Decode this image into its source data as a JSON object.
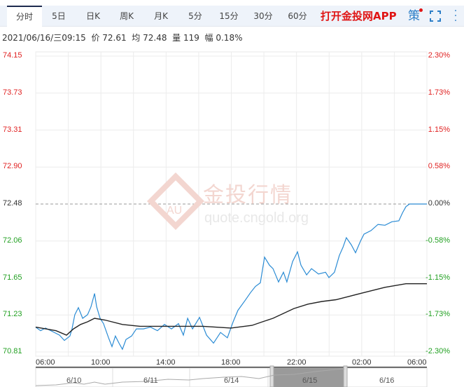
{
  "tabs": [
    {
      "label": "分时",
      "active": true
    },
    {
      "label": "5日"
    },
    {
      "label": "日K"
    },
    {
      "label": "周K"
    },
    {
      "label": "月K"
    },
    {
      "label": "5分"
    },
    {
      "label": "15分"
    },
    {
      "label": "30分"
    },
    {
      "label": "60分"
    }
  ],
  "app_link": "打开金投网APP",
  "strategy_label": "策",
  "info": {
    "datetime": "2021/06/16/三09:15",
    "price_label": "价",
    "price": "72.61",
    "avg_label": "均",
    "avg": "72.48",
    "vol_label": "量",
    "vol": "119",
    "amp_label": "幅",
    "amp": "0.18%"
  },
  "watermark": {
    "brand": "金投行情",
    "logo": "AU",
    "site": "quote.cngold.org"
  },
  "colors": {
    "up": "#e02222",
    "down": "#22a022",
    "price_line": "#2a8bd4",
    "avg_line": "#222222"
  },
  "chart_data": {
    "type": "line",
    "prev_close": 72.48,
    "ylim": [
      70.81,
      74.15
    ],
    "y_ticks_left": [
      "74.15",
      "73.73",
      "73.31",
      "72.90",
      "72.48",
      "72.06",
      "71.65",
      "71.23",
      "70.81"
    ],
    "y_ticks_right": [
      "2.30%",
      "1.73%",
      "1.15%",
      "0.58%",
      "0.00%",
      "-0.58%",
      "-1.15%",
      "-1.73%",
      "-2.30%"
    ],
    "x_ticks": [
      "06:00",
      "10:00",
      "14:00",
      "18:00",
      "22:00",
      "02:00",
      "06:00"
    ],
    "x_range_hours": [
      0,
      24
    ],
    "series": [
      {
        "name": "price",
        "points": [
          [
            0,
            71.09
          ],
          [
            0.3,
            71.05
          ],
          [
            0.6,
            71.08
          ],
          [
            1.03,
            71.04
          ],
          [
            1.46,
            71.0
          ],
          [
            1.76,
            70.94
          ],
          [
            2.1,
            70.99
          ],
          [
            2.23,
            71.07
          ],
          [
            2.4,
            71.23
          ],
          [
            2.62,
            71.31
          ],
          [
            2.88,
            71.19
          ],
          [
            3.18,
            71.23
          ],
          [
            3.39,
            71.32
          ],
          [
            3.61,
            71.47
          ],
          [
            3.74,
            71.32
          ],
          [
            3.95,
            71.19
          ],
          [
            4.16,
            71.13
          ],
          [
            4.47,
            70.97
          ],
          [
            4.68,
            70.87
          ],
          [
            4.89,
            70.99
          ],
          [
            5.11,
            70.91
          ],
          [
            5.32,
            70.84
          ],
          [
            5.54,
            70.95
          ],
          [
            5.88,
            70.99
          ],
          [
            6.18,
            71.07
          ],
          [
            6.61,
            71.07
          ],
          [
            7.04,
            71.09
          ],
          [
            7.47,
            71.05
          ],
          [
            7.9,
            71.12
          ],
          [
            8.33,
            71.07
          ],
          [
            8.76,
            71.13
          ],
          [
            9.06,
            71.0
          ],
          [
            9.32,
            71.19
          ],
          [
            9.62,
            71.07
          ],
          [
            10.05,
            71.2
          ],
          [
            10.48,
            71.0
          ],
          [
            10.91,
            70.91
          ],
          [
            11.34,
            71.03
          ],
          [
            11.76,
            70.97
          ],
          [
            12.11,
            71.15
          ],
          [
            12.41,
            71.28
          ],
          [
            12.84,
            71.39
          ],
          [
            13.18,
            71.48
          ],
          [
            13.48,
            71.55
          ],
          [
            13.78,
            71.59
          ],
          [
            14.04,
            71.88
          ],
          [
            14.34,
            71.79
          ],
          [
            14.56,
            71.75
          ],
          [
            14.9,
            71.6
          ],
          [
            15.2,
            71.71
          ],
          [
            15.41,
            71.6
          ],
          [
            15.76,
            71.83
          ],
          [
            16.06,
            71.94
          ],
          [
            16.27,
            71.79
          ],
          [
            16.62,
            71.68
          ],
          [
            16.92,
            71.75
          ],
          [
            17.35,
            71.69
          ],
          [
            17.78,
            71.71
          ],
          [
            17.99,
            71.65
          ],
          [
            18.33,
            71.71
          ],
          [
            18.63,
            71.9
          ],
          [
            18.85,
            71.99
          ],
          [
            19.06,
            72.1
          ],
          [
            19.36,
            72.02
          ],
          [
            19.62,
            71.93
          ],
          [
            19.92,
            72.06
          ],
          [
            20.14,
            72.14
          ],
          [
            20.57,
            72.18
          ],
          [
            21.0,
            72.25
          ],
          [
            21.43,
            72.24
          ],
          [
            21.85,
            72.28
          ],
          [
            22.28,
            72.29
          ],
          [
            22.5,
            72.38
          ],
          [
            22.71,
            72.45
          ],
          [
            22.93,
            72.48
          ],
          [
            24,
            72.48
          ]
        ]
      },
      {
        "name": "average",
        "points": [
          [
            0,
            71.09
          ],
          [
            1.25,
            71.05
          ],
          [
            1.89,
            71.0
          ],
          [
            2.32,
            71.07
          ],
          [
            2.75,
            71.12
          ],
          [
            3.18,
            71.15
          ],
          [
            3.61,
            71.19
          ],
          [
            4.25,
            71.17
          ],
          [
            5.32,
            71.12
          ],
          [
            6.4,
            71.1
          ],
          [
            8.54,
            71.1
          ],
          [
            10.26,
            71.1
          ],
          [
            11.98,
            71.08
          ],
          [
            13.27,
            71.11
          ],
          [
            13.91,
            71.15
          ],
          [
            14.56,
            71.19
          ],
          [
            15.84,
            71.3
          ],
          [
            16.7,
            71.35
          ],
          [
            17.56,
            71.38
          ],
          [
            18.42,
            71.4
          ],
          [
            19.28,
            71.44
          ],
          [
            20.14,
            71.48
          ],
          [
            21.43,
            71.54
          ],
          [
            22.71,
            71.58
          ],
          [
            24,
            71.58
          ]
        ]
      }
    ]
  },
  "navigator": {
    "days": [
      "6/10",
      "6/11",
      "6/14",
      "6/15",
      "6/16"
    ],
    "selected": "6/15"
  }
}
